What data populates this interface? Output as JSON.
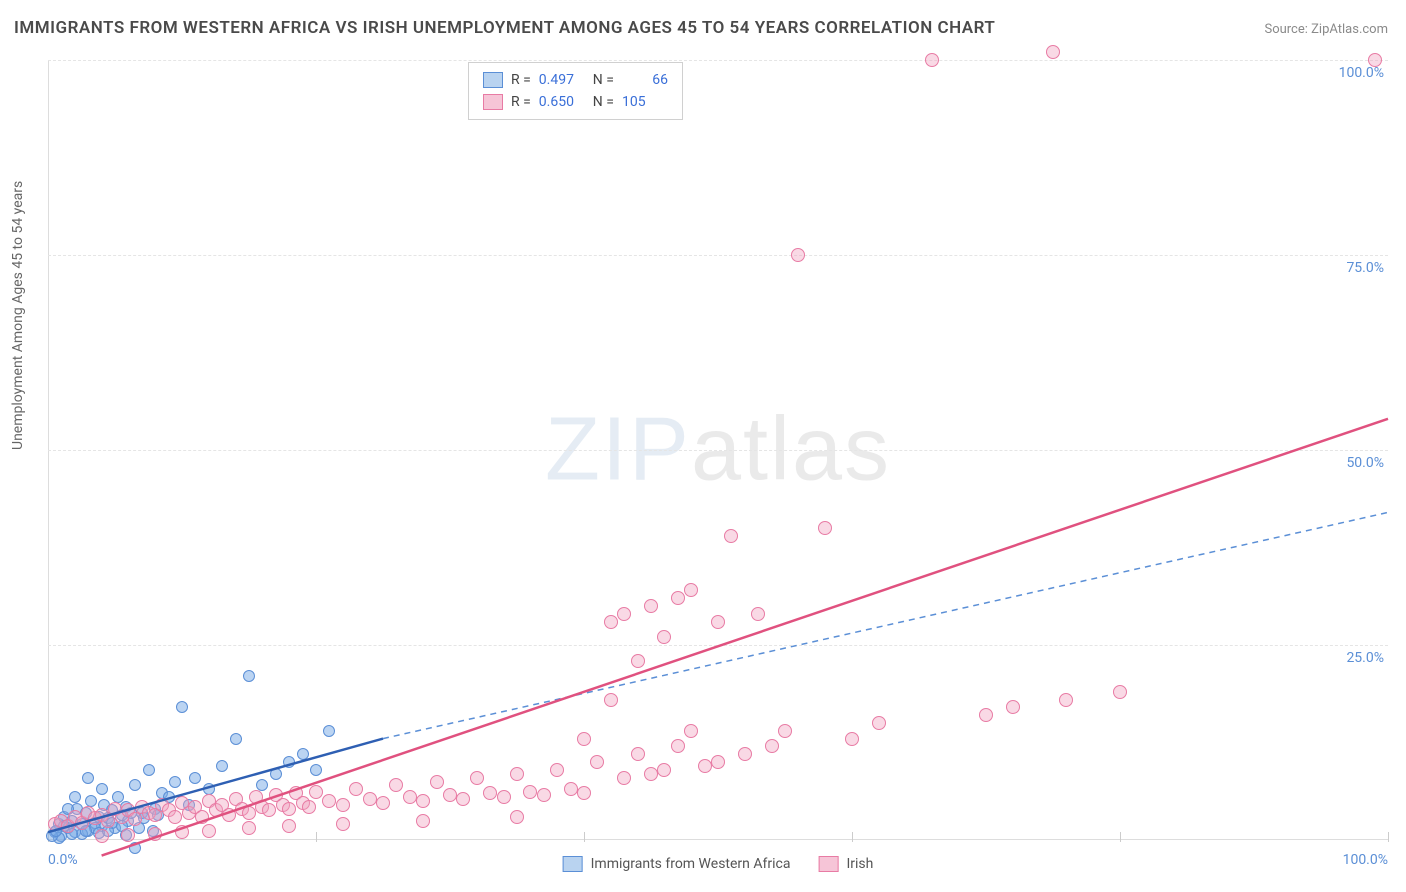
{
  "title": "IMMIGRANTS FROM WESTERN AFRICA VS IRISH UNEMPLOYMENT AMONG AGES 45 TO 54 YEARS CORRELATION CHART",
  "source": "Source: ZipAtlas.com",
  "ylabel": "Unemployment Among Ages 45 to 54 years",
  "watermark_a": "ZIP",
  "watermark_b": "atlas",
  "chart": {
    "type": "scatter",
    "xlim": [
      0,
      100
    ],
    "ylim": [
      0,
      100
    ],
    "xtick_positions": [
      0,
      20,
      40,
      60,
      80,
      100
    ],
    "xtick_labels": {
      "0": "0.0%",
      "100": "100.0%"
    },
    "ytick_positions": [
      25,
      50,
      75,
      100
    ],
    "ytick_labels": {
      "25": "25.0%",
      "50": "50.0%",
      "75": "75.0%",
      "100": "100.0%"
    },
    "grid_color": "#e5e5e5",
    "background_color": "#ffffff",
    "marker_size_blue": 12,
    "marker_size_pink": 14,
    "series": [
      {
        "key": "blue",
        "label": "Immigrants from Western Africa",
        "color_fill": "rgba(120,170,230,0.5)",
        "color_stroke": "#5b8fd6",
        "swatch_fill": "#b9d3f0",
        "swatch_stroke": "#5b8fd6",
        "R": "0.497",
        "N": "66",
        "regression": {
          "x1": 0,
          "y1": 1,
          "x2": 25,
          "y2": 13,
          "color": "#2e5fb3",
          "width": 2.5,
          "solid": true
        },
        "regression_ext": {
          "x1": 25,
          "y1": 13,
          "x2": 100,
          "y2": 42,
          "color": "#5b8fd6",
          "width": 1.5,
          "solid": false
        },
        "points": [
          [
            0.5,
            1
          ],
          [
            0.8,
            2
          ],
          [
            1,
            0.5
          ],
          [
            1.2,
            3
          ],
          [
            1.5,
            1.5
          ],
          [
            1.8,
            2.5
          ],
          [
            2,
            1
          ],
          [
            2.2,
            4
          ],
          [
            2.5,
            2
          ],
          [
            2.8,
            3.5
          ],
          [
            3,
            1.2
          ],
          [
            3.2,
            5
          ],
          [
            3.5,
            2.2
          ],
          [
            3.8,
            3
          ],
          [
            4,
            1.8
          ],
          [
            4.2,
            4.5
          ],
          [
            4.5,
            2.8
          ],
          [
            4.8,
            3.8
          ],
          [
            5,
            1.5
          ],
          [
            5.2,
            5.5
          ],
          [
            5.5,
            3.2
          ],
          [
            5.8,
            4.2
          ],
          [
            6,
            2.5
          ],
          [
            6.5,
            7
          ],
          [
            7,
            3.5
          ],
          [
            7.5,
            9
          ],
          [
            8,
            4
          ],
          [
            8.5,
            6
          ],
          [
            9,
            5.5
          ],
          [
            9.5,
            7.5
          ],
          [
            10,
            17
          ],
          [
            10.5,
            4.5
          ],
          [
            11,
            8
          ],
          [
            12,
            6.5
          ],
          [
            13,
            9.5
          ],
          [
            14,
            13
          ],
          [
            15,
            21
          ],
          [
            16,
            7
          ],
          [
            17,
            8.5
          ],
          [
            18,
            10
          ],
          [
            19,
            11
          ],
          [
            20,
            9
          ],
          [
            21,
            14
          ],
          [
            6.5,
            -1
          ],
          [
            4,
            6.5
          ],
          [
            3,
            8
          ],
          [
            2,
            5.5
          ],
          [
            1.5,
            4
          ],
          [
            0.8,
            0.2
          ],
          [
            1.2,
            1.8
          ],
          [
            2.5,
            0.8
          ],
          [
            3.5,
            1.5
          ],
          [
            4.8,
            2.2
          ],
          [
            5.5,
            1.8
          ],
          [
            6.2,
            3.5
          ],
          [
            7.2,
            2.8
          ],
          [
            8.2,
            3.2
          ],
          [
            0.3,
            0.5
          ],
          [
            0.6,
            1.2
          ],
          [
            1.8,
            0.8
          ],
          [
            2.8,
            1.2
          ],
          [
            3.8,
            0.9
          ],
          [
            4.5,
            1.1
          ],
          [
            5.8,
            0.7
          ],
          [
            6.8,
            1.5
          ],
          [
            7.8,
            1.2
          ]
        ]
      },
      {
        "key": "pink",
        "label": "Irish",
        "color_fill": "rgba(240,160,190,0.4)",
        "color_stroke": "#e87ba4",
        "swatch_fill": "#f6c5d7",
        "swatch_stroke": "#e87ba4",
        "R": "0.650",
        "N": "105",
        "regression": {
          "x1": 4,
          "y1": -2,
          "x2": 100,
          "y2": 54,
          "color": "#e0517f",
          "width": 2.5,
          "solid": true
        },
        "points": [
          [
            0.5,
            2
          ],
          [
            1,
            2.5
          ],
          [
            1.5,
            1.8
          ],
          [
            2,
            3
          ],
          [
            2.5,
            2.2
          ],
          [
            3,
            3.5
          ],
          [
            3.5,
            2.8
          ],
          [
            4,
            3.2
          ],
          [
            4.5,
            2.5
          ],
          [
            5,
            4
          ],
          [
            5.5,
            3
          ],
          [
            6,
            3.8
          ],
          [
            6.5,
            2.7
          ],
          [
            7,
            4.2
          ],
          [
            7.5,
            3.5
          ],
          [
            8,
            3.2
          ],
          [
            8.5,
            4.5
          ],
          [
            9,
            3.8
          ],
          [
            9.5,
            3
          ],
          [
            10,
            4.8
          ],
          [
            10.5,
            3.5
          ],
          [
            11,
            4.2
          ],
          [
            11.5,
            3
          ],
          [
            12,
            5
          ],
          [
            12.5,
            3.8
          ],
          [
            13,
            4.5
          ],
          [
            13.5,
            3.2
          ],
          [
            14,
            5.2
          ],
          [
            14.5,
            4
          ],
          [
            15,
            3.5
          ],
          [
            15.5,
            5.5
          ],
          [
            16,
            4.2
          ],
          [
            16.5,
            3.8
          ],
          [
            17,
            5.8
          ],
          [
            17.5,
            4.5
          ],
          [
            18,
            4
          ],
          [
            18.5,
            6
          ],
          [
            19,
            4.8
          ],
          [
            19.5,
            4.2
          ],
          [
            20,
            6.2
          ],
          [
            21,
            5
          ],
          [
            22,
            4.5
          ],
          [
            23,
            6.5
          ],
          [
            24,
            5.2
          ],
          [
            25,
            4.8
          ],
          [
            26,
            7
          ],
          [
            27,
            5.5
          ],
          [
            28,
            5
          ],
          [
            29,
            7.5
          ],
          [
            30,
            5.8
          ],
          [
            31,
            5.2
          ],
          [
            32,
            8
          ],
          [
            33,
            6
          ],
          [
            34,
            5.5
          ],
          [
            35,
            8.5
          ],
          [
            36,
            6.2
          ],
          [
            37,
            5.8
          ],
          [
            38,
            9
          ],
          [
            39,
            6.5
          ],
          [
            40,
            6
          ],
          [
            40,
            13
          ],
          [
            41,
            10
          ],
          [
            42,
            28
          ],
          [
            42,
            18
          ],
          [
            43,
            8
          ],
          [
            43,
            29
          ],
          [
            44,
            11
          ],
          [
            44,
            23
          ],
          [
            45,
            8.5
          ],
          [
            45,
            30
          ],
          [
            46,
            9
          ],
          [
            46,
            26
          ],
          [
            47,
            31
          ],
          [
            47,
            12
          ],
          [
            48,
            14
          ],
          [
            48,
            32
          ],
          [
            49,
            9.5
          ],
          [
            50,
            28
          ],
          [
            50,
            10
          ],
          [
            51,
            39
          ],
          [
            52,
            11
          ],
          [
            53,
            29
          ],
          [
            54,
            12
          ],
          [
            55,
            14
          ],
          [
            56,
            75
          ],
          [
            58,
            40
          ],
          [
            60,
            13
          ],
          [
            62,
            15
          ],
          [
            66,
            100
          ],
          [
            70,
            16
          ],
          [
            72,
            17
          ],
          [
            75,
            101
          ],
          [
            76,
            18
          ],
          [
            80,
            19
          ],
          [
            99,
            100
          ],
          [
            35,
            3
          ],
          [
            28,
            2.5
          ],
          [
            22,
            2
          ],
          [
            18,
            1.8
          ],
          [
            15,
            1.5
          ],
          [
            12,
            1.2
          ],
          [
            10,
            1
          ],
          [
            8,
            0.8
          ],
          [
            6,
            0.6
          ],
          [
            4,
            0.5
          ]
        ]
      }
    ]
  }
}
